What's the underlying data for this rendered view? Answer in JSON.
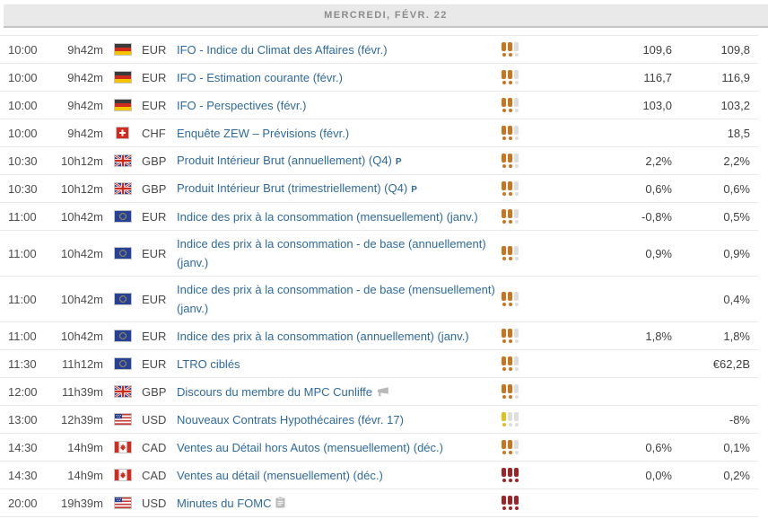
{
  "header": {
    "date_label": "MERCREDI, FÉVR. 22"
  },
  "colors": {
    "link_blue": "#2e6a9e",
    "header_bg": "#e9e9e9",
    "importance_low": "#e0bf1e",
    "importance_medium": "#c9741f",
    "importance_high": "#9e2428",
    "importance_off": "#dedede"
  },
  "events": [
    {
      "time": "10:00",
      "countdown": "9h42m",
      "country": "de",
      "flag_name": "germany-flag",
      "currency": "EUR",
      "name": "IFO - Indice du Climat des Affaires (févr.)",
      "marker": null,
      "importance": 2,
      "importance_color": "medium",
      "forecast": "109,6",
      "previous": "109,8"
    },
    {
      "time": "10:00",
      "countdown": "9h42m",
      "country": "de",
      "flag_name": "germany-flag",
      "currency": "EUR",
      "name": "IFO - Estimation courante (févr.)",
      "marker": null,
      "importance": 2,
      "importance_color": "medium",
      "forecast": "116,7",
      "previous": "116,9"
    },
    {
      "time": "10:00",
      "countdown": "9h42m",
      "country": "de",
      "flag_name": "germany-flag",
      "currency": "EUR",
      "name": "IFO - Perspectives (févr.)",
      "marker": null,
      "importance": 2,
      "importance_color": "medium",
      "forecast": "103,0",
      "previous": "103,2"
    },
    {
      "time": "10:00",
      "countdown": "9h42m",
      "country": "ch",
      "flag_name": "switzerland-flag",
      "currency": "CHF",
      "name": "Enquête ZEW – Prévisions (févr.)",
      "marker": null,
      "importance": 2,
      "importance_color": "medium",
      "forecast": "",
      "previous": "18,5"
    },
    {
      "time": "10:30",
      "countdown": "10h12m",
      "country": "gb",
      "flag_name": "united-kingdom-flag",
      "currency": "GBP",
      "name": "Produit Intérieur Brut (annuellement) (Q4)",
      "marker": "P",
      "importance": 2,
      "importance_color": "medium",
      "forecast": "2,2%",
      "previous": "2,2%"
    },
    {
      "time": "10:30",
      "countdown": "10h12m",
      "country": "gb",
      "flag_name": "united-kingdom-flag",
      "currency": "GBP",
      "name": "Produit Intérieur Brut (trimestriellement) (Q4)",
      "marker": "P",
      "importance": 2,
      "importance_color": "medium",
      "forecast": "0,6%",
      "previous": "0,6%"
    },
    {
      "time": "11:00",
      "countdown": "10h42m",
      "country": "eu",
      "flag_name": "european-union-flag",
      "currency": "EUR",
      "name": "Indice des prix à la consommation (mensuellement) (janv.)",
      "marker": null,
      "importance": 2,
      "importance_color": "medium",
      "forecast": "-0,8%",
      "previous": "0,5%"
    },
    {
      "time": "11:00",
      "countdown": "10h42m",
      "country": "eu",
      "flag_name": "european-union-flag",
      "currency": "EUR",
      "name": "Indice des prix à la consommation - de base (annuellement) (janv.)",
      "marker": null,
      "importance": 2,
      "importance_color": "medium",
      "forecast": "0,9%",
      "previous": "0,9%"
    },
    {
      "time": "11:00",
      "countdown": "10h42m",
      "country": "eu",
      "flag_name": "european-union-flag",
      "currency": "EUR",
      "name": "Indice des prix à la consommation - de base (mensuellement) (janv.)",
      "marker": null,
      "importance": 2,
      "importance_color": "medium",
      "forecast": "",
      "previous": "0,4%"
    },
    {
      "time": "11:00",
      "countdown": "10h42m",
      "country": "eu",
      "flag_name": "european-union-flag",
      "currency": "EUR",
      "name": "Indice des prix à la consommation (annuellement) (janv.)",
      "marker": null,
      "importance": 2,
      "importance_color": "medium",
      "forecast": "1,8%",
      "previous": "1,8%"
    },
    {
      "time": "11:30",
      "countdown": "11h12m",
      "country": "eu",
      "flag_name": "european-union-flag",
      "currency": "EUR",
      "name": "LTRO ciblés",
      "marker": null,
      "importance": 2,
      "importance_color": "medium",
      "forecast": "",
      "previous": "€62,2B"
    },
    {
      "time": "12:00",
      "countdown": "11h39m",
      "country": "gb",
      "flag_name": "united-kingdom-flag",
      "currency": "GBP",
      "name": "Discours du membre du MPC Cunliffe",
      "marker": "speech",
      "importance": 2,
      "importance_color": "medium",
      "forecast": "",
      "previous": ""
    },
    {
      "time": "13:00",
      "countdown": "12h39m",
      "country": "us",
      "flag_name": "united-states-flag",
      "currency": "USD",
      "name": "Nouveaux Contrats Hypothécaires (févr. 17)",
      "marker": null,
      "importance": 1,
      "importance_color": "low",
      "forecast": "",
      "previous": "-8%"
    },
    {
      "time": "14:30",
      "countdown": "14h9m",
      "country": "ca",
      "flag_name": "canada-flag",
      "currency": "CAD",
      "name": "Ventes au Détail hors Autos (mensuellement) (déc.)",
      "marker": null,
      "importance": 2,
      "importance_color": "medium",
      "forecast": "0,6%",
      "previous": "0,1%"
    },
    {
      "time": "14:30",
      "countdown": "14h9m",
      "country": "ca",
      "flag_name": "canada-flag",
      "currency": "CAD",
      "name": "Ventes au détail (mensuellement) (déc.)",
      "marker": null,
      "importance": 3,
      "importance_color": "high",
      "forecast": "0,0%",
      "previous": "0,2%"
    },
    {
      "time": "20:00",
      "countdown": "19h39m",
      "country": "us",
      "flag_name": "united-states-flag",
      "currency": "USD",
      "name": "Minutes du FOMC",
      "marker": "report",
      "importance": 3,
      "importance_color": "high",
      "forecast": "",
      "previous": ""
    }
  ]
}
